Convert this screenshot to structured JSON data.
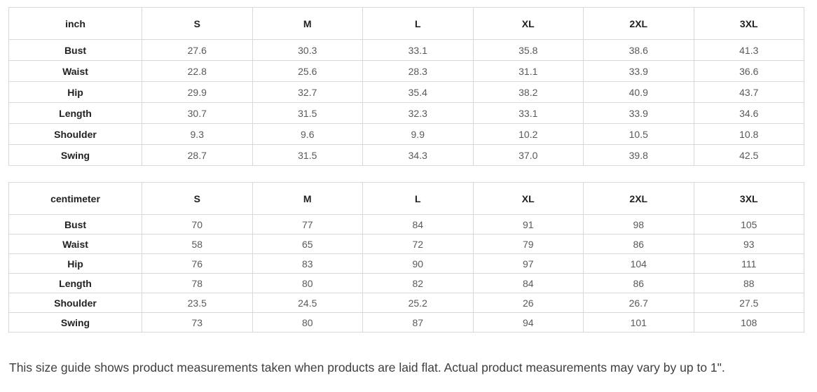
{
  "tables": [
    {
      "unit_label": "inch",
      "columns": [
        "S",
        "M",
        "L",
        "XL",
        "2XL",
        "3XL"
      ],
      "rows": [
        {
          "label": "Bust",
          "values": [
            "27.6",
            "30.3",
            "33.1",
            "35.8",
            "38.6",
            "41.3"
          ]
        },
        {
          "label": "Waist",
          "values": [
            "22.8",
            "25.6",
            "28.3",
            "31.1",
            "33.9",
            "36.6"
          ]
        },
        {
          "label": "Hip",
          "values": [
            "29.9",
            "32.7",
            "35.4",
            "38.2",
            "40.9",
            "43.7"
          ]
        },
        {
          "label": "Length",
          "values": [
            "30.7",
            "31.5",
            "32.3",
            "33.1",
            "33.9",
            "34.6"
          ]
        },
        {
          "label": "Shoulder",
          "values": [
            "9.3",
            "9.6",
            "9.9",
            "10.2",
            "10.5",
            "10.8"
          ]
        },
        {
          "label": "Swing",
          "values": [
            "28.7",
            "31.5",
            "34.3",
            "37.0",
            "39.8",
            "42.5"
          ]
        }
      ]
    },
    {
      "unit_label": "centimeter",
      "columns": [
        "S",
        "M",
        "L",
        "XL",
        "2XL",
        "3XL"
      ],
      "rows": [
        {
          "label": "Bust",
          "values": [
            "70",
            "77",
            "84",
            "91",
            "98",
            "105"
          ]
        },
        {
          "label": "Waist",
          "values": [
            "58",
            "65",
            "72",
            "79",
            "86",
            "93"
          ]
        },
        {
          "label": "Hip",
          "values": [
            "76",
            "83",
            "90",
            "97",
            "104",
            "111"
          ]
        },
        {
          "label": "Length",
          "values": [
            "78",
            "80",
            "82",
            "84",
            "86",
            "88"
          ]
        },
        {
          "label": "Shoulder",
          "values": [
            "23.5",
            "24.5",
            "25.2",
            "26",
            "26.7",
            "27.5"
          ]
        },
        {
          "label": "Swing",
          "values": [
            "73",
            "80",
            "87",
            "94",
            "101",
            "108"
          ]
        }
      ]
    }
  ],
  "footer": {
    "note": "This size guide shows product measurements taken when products are laid flat. Actual product measurements may vary by up to 1\"."
  },
  "colors": {
    "border": "#d8d8d8",
    "header_text": "#202124",
    "value_text": "#565a5c",
    "note_text": "#3c4043",
    "background": "#ffffff"
  }
}
